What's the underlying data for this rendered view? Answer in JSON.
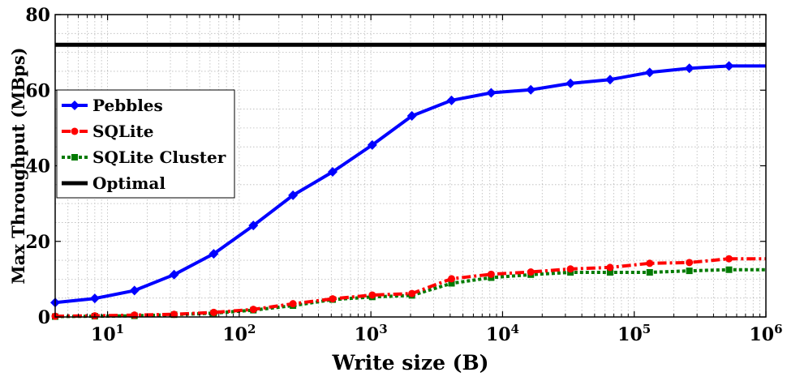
{
  "chart_data": {
    "type": "line",
    "xlabel": "Write size (B)",
    "ylabel": "Max Throughput (MBps)",
    "xscale": "log",
    "xlim": [
      4,
      1000000
    ],
    "ylim": [
      0,
      80
    ],
    "x_ticks": [
      {
        "value": 10,
        "base": "10",
        "exp": "1"
      },
      {
        "value": 100,
        "base": "10",
        "exp": "2"
      },
      {
        "value": 1000,
        "base": "10",
        "exp": "3"
      },
      {
        "value": 10000,
        "base": "10",
        "exp": "4"
      },
      {
        "value": 100000,
        "base": "10",
        "exp": "5"
      },
      {
        "value": 1000000,
        "base": "10",
        "exp": "6"
      }
    ],
    "y_ticks": [
      {
        "value": 0,
        "label": "0"
      },
      {
        "value": 20,
        "label": "20"
      },
      {
        "value": 40,
        "label": "40"
      },
      {
        "value": 60,
        "label": "60"
      },
      {
        "value": 80,
        "label": "80"
      }
    ],
    "grid": "on, dotted (major and minor)",
    "legend_position": "left",
    "series": [
      {
        "name": "Pebbles",
        "color": "#0000ff",
        "line_style": "solid",
        "marker": "diamond",
        "x": [
          4,
          8,
          16,
          32,
          64,
          128,
          256,
          512,
          1024,
          2048,
          4096,
          8192,
          16384,
          32768,
          65536,
          131072,
          262144,
          524288,
          1000000
        ],
        "y": [
          3.8,
          4.9,
          7.0,
          11.2,
          16.7,
          24.2,
          32.2,
          38.4,
          45.5,
          53.2,
          57.3,
          59.3,
          60.1,
          61.8,
          62.8,
          64.7,
          65.8,
          66.4,
          66.4
        ]
      },
      {
        "name": "SQLite",
        "color": "#ff0000",
        "line_style": "dash-dot",
        "marker": "circle",
        "x": [
          4,
          8,
          16,
          32,
          64,
          128,
          256,
          512,
          1024,
          2048,
          4096,
          8192,
          16384,
          32768,
          65536,
          131072,
          262144,
          524288,
          1000000
        ],
        "y": [
          0.2,
          0.3,
          0.5,
          0.7,
          1.2,
          2.0,
          3.5,
          4.8,
          5.8,
          6.2,
          10.1,
          11.3,
          11.9,
          12.7,
          13.1,
          14.2,
          14.4,
          15.4,
          15.4
        ]
      },
      {
        "name": "SQLite Cluster",
        "color": "#007a00",
        "line_style": "dotted",
        "marker": "square",
        "x": [
          4,
          8,
          16,
          32,
          64,
          128,
          256,
          512,
          1024,
          2048,
          4096,
          8192,
          16384,
          32768,
          65536,
          131072,
          262144,
          524288,
          1000000
        ],
        "y": [
          0.1,
          0.2,
          0.3,
          0.6,
          1.0,
          1.8,
          3.0,
          4.6,
          5.3,
          5.7,
          8.9,
          10.4,
          11.2,
          11.8,
          11.8,
          11.8,
          12.2,
          12.5,
          12.5
        ]
      },
      {
        "name": "Optimal",
        "color": "#000000",
        "line_style": "solid",
        "marker": "none",
        "x": [
          4,
          1000000
        ],
        "y": [
          72,
          72
        ]
      }
    ]
  }
}
